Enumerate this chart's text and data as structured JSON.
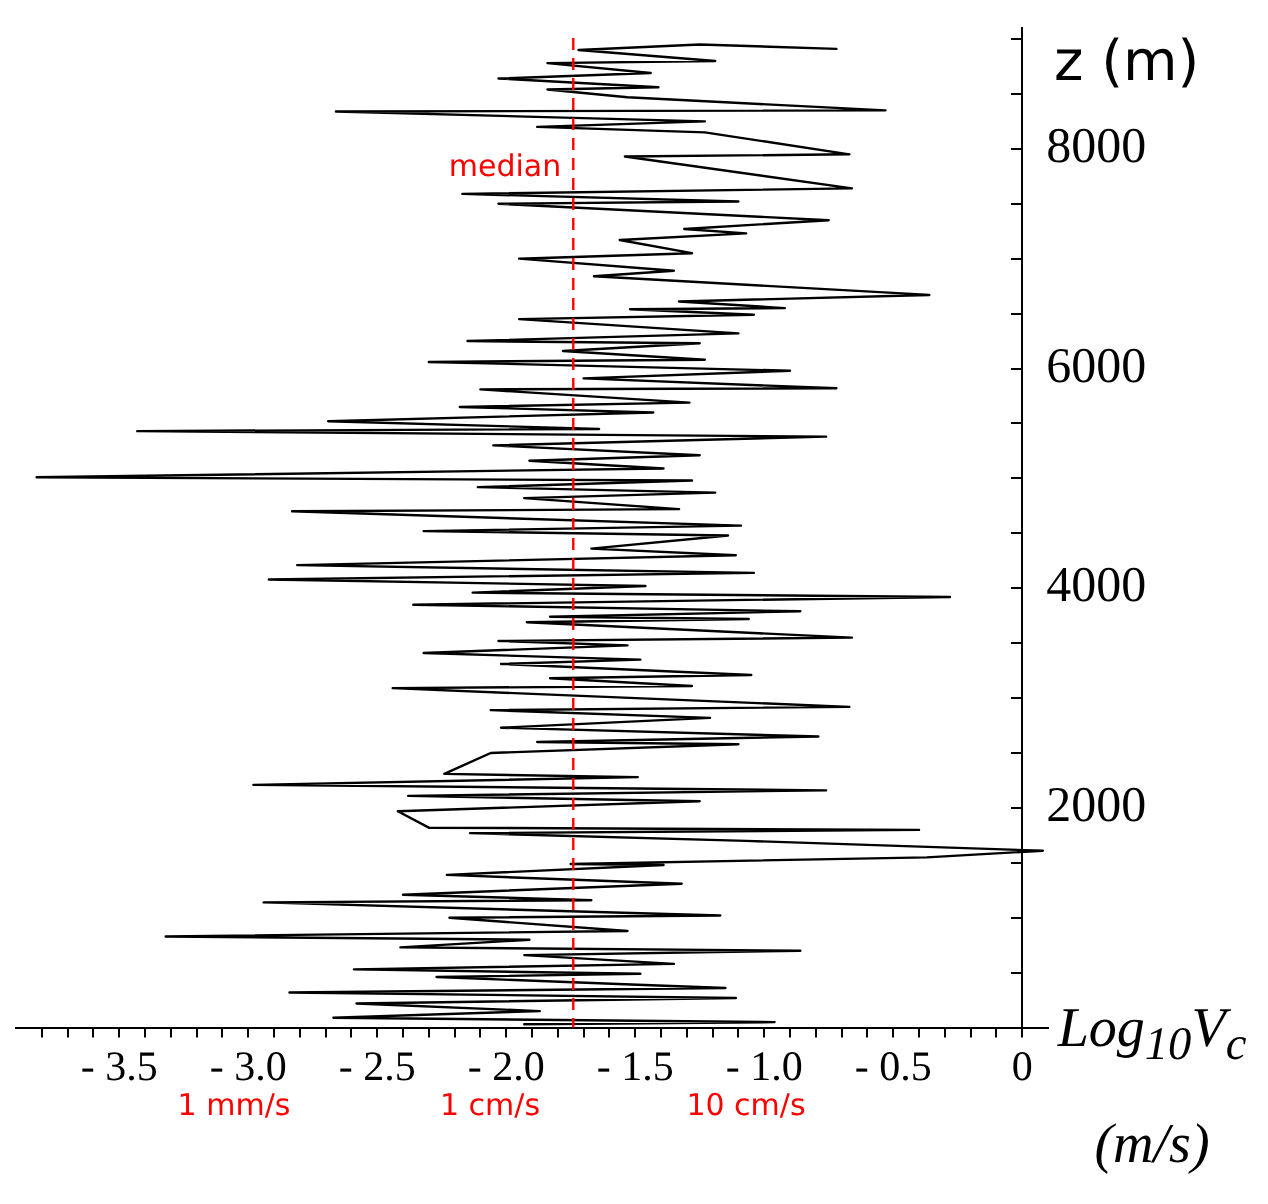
{
  "chart_data": {
    "type": "line",
    "xlabel": "Log$_{10}$V$_{c}$ (m/s)",
    "ylabel": "z (m)",
    "color": "#000000",
    "marker": "none",
    "x": [
      -0.72,
      -1.25,
      -1.72,
      -1.19,
      -1.84,
      -1.44,
      -2.03,
      -1.41,
      -1.84,
      -1.53,
      -0.53,
      -2.66,
      -1.23,
      -1.88,
      -1.23,
      -0.67,
      -1.54,
      -0.66,
      -2.17,
      -1.1,
      -2.03,
      -0.75,
      -1.31,
      -1.07,
      -1.56,
      -1.28,
      -1.95,
      -1.35,
      -1.66,
      -0.36,
      -1.33,
      -0.92,
      -1.52,
      -1.04,
      -1.95,
      -1.1,
      -2.15,
      -1.25,
      -1.78,
      -1.23,
      -2.3,
      -0.9,
      -1.7,
      -0.72,
      -2.1,
      -1.29,
      -2.18,
      -1.43,
      -2.69,
      -1.64,
      -3.43,
      -0.76,
      -2.05,
      -1.25,
      -1.91,
      -1.39,
      -3.82,
      -1.28,
      -2.11,
      -1.19,
      -1.93,
      -1.33,
      -2.83,
      -1.09,
      -2.32,
      -1.14,
      -1.67,
      -1.11,
      -2.81,
      -1.04,
      -2.92,
      -1.46,
      -2.13,
      -0.28,
      -2.36,
      -0.86,
      -1.83,
      -1.06,
      -1.92,
      -0.66,
      -2.03,
      -1.53,
      -2.32,
      -1.48,
      -2.02,
      -1.05,
      -1.83,
      -1.28,
      -2.44,
      -0.67,
      -2.06,
      -1.21,
      -2.02,
      -0.79,
      -1.88,
      -1.1,
      -2.06,
      -2.24,
      -1.49,
      -2.98,
      -0.76,
      -2.38,
      -1.25,
      -2.42,
      -2.3,
      -0.4,
      -2.14,
      -1.07,
      0.08,
      -0.37,
      -1.75,
      -1.39,
      -2.23,
      -1.32,
      -2.4,
      -1.67,
      -2.94,
      -1.17,
      -2.22,
      -1.53,
      -3.32,
      -1.91,
      -2.41,
      -0.86,
      -1.93,
      -1.35,
      -2.59,
      -1.48,
      -2.27,
      -1.49,
      -1.15,
      -2.84,
      -1.11,
      -2.58,
      -1.87,
      -2.67,
      -0.96,
      -1.93
    ],
    "values": [
      8910,
      8950,
      8900,
      8800,
      8780,
      8690,
      8640,
      8560,
      8540,
      8470,
      8350,
      8340,
      8250,
      8200,
      8150,
      7950,
      7930,
      7640,
      7590,
      7520,
      7500,
      7350,
      7270,
      7230,
      7170,
      7050,
      7000,
      6890,
      6840,
      6670,
      6610,
      6550,
      6540,
      6490,
      6450,
      6320,
      6250,
      6230,
      6160,
      6080,
      6060,
      5980,
      5910,
      5820,
      5810,
      5690,
      5650,
      5600,
      5520,
      5450,
      5430,
      5380,
      5300,
      5210,
      5160,
      5090,
      5010,
      4980,
      4920,
      4870,
      4820,
      4720,
      4700,
      4570,
      4520,
      4480,
      4360,
      4300,
      4210,
      4140,
      4080,
      4020,
      3960,
      3920,
      3850,
      3790,
      3740,
      3720,
      3690,
      3550,
      3520,
      3480,
      3410,
      3350,
      3310,
      3210,
      3180,
      3110,
      3090,
      2920,
      2890,
      2820,
      2730,
      2650,
      2600,
      2580,
      2500,
      2310,
      2280,
      2210,
      2160,
      2110,
      2060,
      1970,
      1820,
      1800,
      1770,
      1700,
      1610,
      1550,
      1490,
      1480,
      1390,
      1310,
      1210,
      1160,
      1140,
      1020,
      1000,
      880,
      830,
      800,
      730,
      700,
      660,
      580,
      530,
      490,
      460,
      390,
      360,
      320,
      270,
      220,
      150,
      90,
      50,
      30
    ],
    "xlim": [
      -3.9,
      0.1
    ],
    "ylim": [
      0,
      9100
    ],
    "xticks": [
      {
        "value": -3.8,
        "label": null
      },
      {
        "value": -3.7,
        "label": null
      },
      {
        "value": -3.6,
        "label": null
      },
      {
        "value": -3.5,
        "label": "- 3.5"
      },
      {
        "value": -3.4,
        "label": null
      },
      {
        "value": -3.3,
        "label": null
      },
      {
        "value": -3.2,
        "label": null
      },
      {
        "value": -3.1,
        "label": null
      },
      {
        "value": -3.0,
        "label": "- 3.0"
      },
      {
        "value": -2.9,
        "label": null
      },
      {
        "value": -2.8,
        "label": null
      },
      {
        "value": -2.7,
        "label": null
      },
      {
        "value": -2.6,
        "label": null
      },
      {
        "value": -2.5,
        "label": "- 2.5"
      },
      {
        "value": -2.4,
        "label": null
      },
      {
        "value": -2.3,
        "label": null
      },
      {
        "value": -2.2,
        "label": null
      },
      {
        "value": -2.1,
        "label": null
      },
      {
        "value": -2.0,
        "label": "- 2.0"
      },
      {
        "value": -1.9,
        "label": null
      },
      {
        "value": -1.8,
        "label": null
      },
      {
        "value": -1.7,
        "label": null
      },
      {
        "value": -1.6,
        "label": null
      },
      {
        "value": -1.5,
        "label": "- 1.5"
      },
      {
        "value": -1.4,
        "label": null
      },
      {
        "value": -1.3,
        "label": null
      },
      {
        "value": -1.2,
        "label": null
      },
      {
        "value": -1.1,
        "label": null
      },
      {
        "value": -1.0,
        "label": "- 1.0"
      },
      {
        "value": -0.9,
        "label": null
      },
      {
        "value": -0.8,
        "label": null
      },
      {
        "value": -0.7,
        "label": null
      },
      {
        "value": -0.6,
        "label": null
      },
      {
        "value": -0.5,
        "label": "- 0.5"
      },
      {
        "value": -0.4,
        "label": null
      },
      {
        "value": -0.3,
        "label": null
      },
      {
        "value": -0.2,
        "label": null
      },
      {
        "value": -0.1,
        "label": null
      },
      0
    ],
    "yticks": [
      {
        "value": 500,
        "label": null
      },
      {
        "value": 1000,
        "label": null
      },
      {
        "value": 1500,
        "label": null
      },
      2000,
      {
        "value": 2500,
        "label": null
      },
      {
        "value": 3000,
        "label": null
      },
      {
        "value": 3500,
        "label": null
      },
      4000,
      {
        "value": 4500,
        "label": null
      },
      {
        "value": 5000,
        "label": null
      },
      {
        "value": 5500,
        "label": null
      },
      6000,
      {
        "value": 6500,
        "label": null
      },
      {
        "value": 7000,
        "label": null
      },
      {
        "value": 7500,
        "label": null
      },
      8000,
      {
        "value": 8500,
        "label": null
      },
      {
        "value": 9000,
        "label": null
      }
    ],
    "ref_lines": [
      {
        "axis": "x",
        "value": -1.74,
        "label": "median",
        "color": "#ff0000",
        "line_style": "dashed"
      }
    ],
    "annotations": [
      "1 mm/s",
      "1 cm/s",
      "10 cm/s"
    ]
  }
}
